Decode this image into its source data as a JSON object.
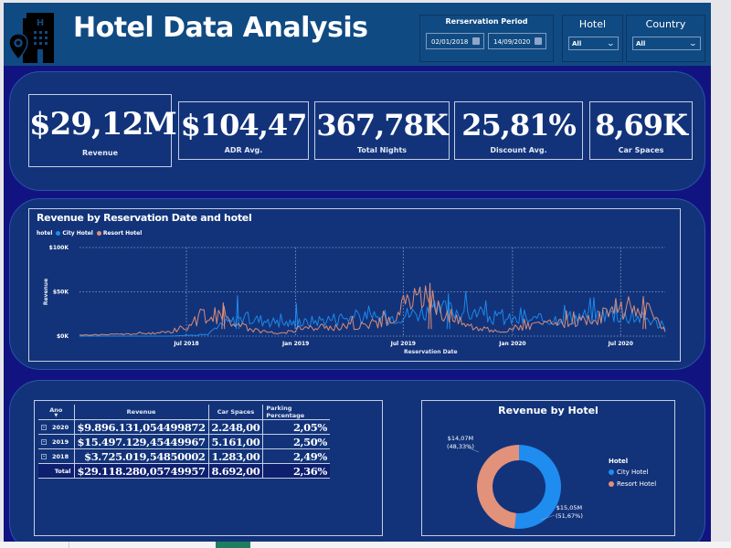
{
  "header": {
    "title": "Hotel Data Analysis",
    "logo_icon": "hotel-location-icon",
    "filters": {
      "period": {
        "title": "Rerservation Period",
        "start": "02/01/2018",
        "end": "14/09/2020",
        "calendar_icon": "calendar-icon"
      },
      "hotel": {
        "title": "Hotel",
        "value": "All"
      },
      "country": {
        "title": "Country",
        "value": "All"
      }
    }
  },
  "kpis": [
    {
      "value": "$29,12M",
      "label": "Revenue"
    },
    {
      "value": "$104,47",
      "label": "ADR Avg."
    },
    {
      "value": "367,78K",
      "label": "Total Nights"
    },
    {
      "value": "25,81%",
      "label": "Discount Avg."
    },
    {
      "value": "8,69K",
      "label": "Car Spaces"
    }
  ],
  "colors": {
    "city_hotel": "#1f8cf0",
    "resort_hotel": "#e2917a",
    "background": "#111480",
    "panel": "#12337a",
    "header": "#104a82"
  },
  "chart_data": [
    {
      "type": "line",
      "title": "Revenue by Reservation Date and hotel",
      "legend_title": "hotel",
      "legend_position": "top-left",
      "xlabel": "Reservation Date",
      "ylabel": "Revenue",
      "y_ticks": [
        "$0K",
        "$50K",
        "$100K"
      ],
      "ylim": [
        0,
        100000
      ],
      "x_range": [
        "2018-01-02",
        "2020-09-14"
      ],
      "x_ticks": [
        {
          "label": "Jul 2018",
          "date": "2018-07-01"
        },
        {
          "label": "Jan 2019",
          "date": "2019-01-01"
        },
        {
          "label": "Jul 2019",
          "date": "2019-07-01"
        },
        {
          "label": "Jan 2020",
          "date": "2020-01-01"
        },
        {
          "label": "Jul 2020",
          "date": "2020-07-01"
        }
      ],
      "grid": true,
      "series": [
        {
          "name": "City Hotel",
          "color": "#1f8cf0",
          "monthly_revenue_approx": [
            0,
            0,
            0,
            0,
            0,
            0,
            1000,
            2000,
            15000,
            20000,
            18000,
            15000,
            14000,
            18000,
            20000,
            22000,
            20000,
            22000,
            25000,
            28000,
            30000,
            28000,
            22000,
            20000,
            18000,
            18000,
            20000,
            22000,
            24000,
            25000,
            22000,
            20000,
            10000
          ],
          "spikes": [
            {
              "date": "2018-09-25",
              "value": 46000
            },
            {
              "date": "2019-01-02",
              "value": 37000
            },
            {
              "date": "2019-09-15",
              "value": 48000
            }
          ]
        },
        {
          "name": "Resort Hotel",
          "color": "#e2917a",
          "monthly_revenue_approx": [
            1000,
            1500,
            2000,
            2500,
            3000,
            5000,
            12000,
            25000,
            20000,
            10000,
            5000,
            3000,
            8000,
            9000,
            10000,
            12000,
            14000,
            18000,
            40000,
            45000,
            25000,
            15000,
            8000,
            5000,
            10000,
            12000,
            14000,
            16000,
            18000,
            28000,
            32000,
            30000,
            5000
          ],
          "spikes": [
            {
              "date": "2018-09-01",
              "value": 38000
            },
            {
              "date": "2019-08-15",
              "value": 60000
            },
            {
              "date": "2020-08-10",
              "value": 33000
            }
          ]
        }
      ]
    },
    {
      "type": "table",
      "columns": [
        "Ano",
        "Revenue",
        "Car Spaces",
        "Parking Percentage"
      ],
      "rows": [
        {
          "year": "2020",
          "revenue": "$9.896.131,054499872",
          "car_spaces": "2.248,00",
          "parking_pct": "2,05%"
        },
        {
          "year": "2019",
          "revenue": "$15.497.129,45449967",
          "car_spaces": "5.161,00",
          "parking_pct": "2,50%"
        },
        {
          "year": "2018",
          "revenue": "$3.725.019,54850002",
          "car_spaces": "1.283,00",
          "parking_pct": "2,49%"
        }
      ],
      "total": {
        "label": "Total",
        "revenue": "$29.118.280,05749957",
        "car_spaces": "8.692,00",
        "parking_pct": "2,36%"
      }
    },
    {
      "type": "pie",
      "title": "Revenue by Hotel",
      "legend_title": "Hotel",
      "legend_position": "right",
      "slices": [
        {
          "name": "City Hotel",
          "value": 15.05,
          "unit": "M",
          "percent": 51.67,
          "label": "$15,05M",
          "pct_label": "(51,67%)",
          "color": "#1f8cf0"
        },
        {
          "name": "Resort Hotel",
          "value": 14.07,
          "unit": "M",
          "percent": 48.33,
          "label": "$14,07M",
          "pct_label": "(48,33%)",
          "color": "#e2917a"
        }
      ]
    }
  ]
}
